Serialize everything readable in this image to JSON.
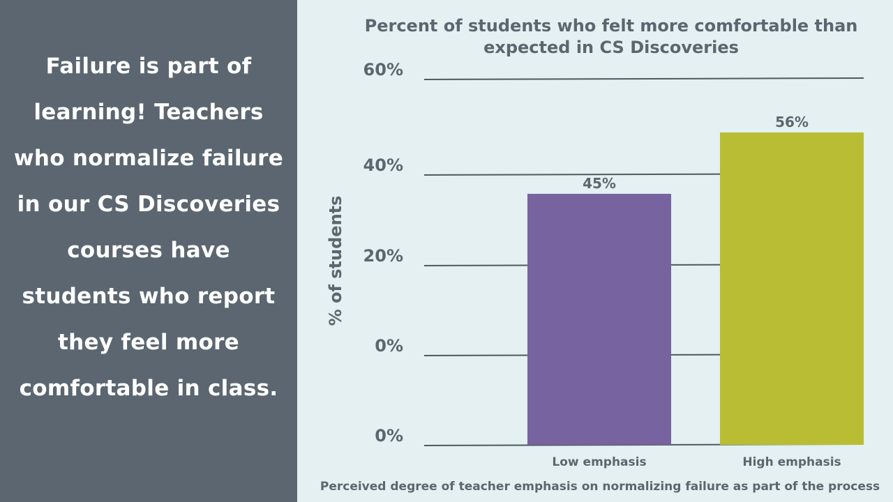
{
  "left_panel": {
    "text": "Failure is part of learning! Teachers who normalize failure in our CS Discoveries courses have students who report they feel more comfortable in class."
  },
  "colors": {
    "left_panel_bg": "#5b6670",
    "chart_bg": "#e4f0f1",
    "text": "#5b6670",
    "gridline": "#4e5962",
    "low_emphasis_bar": "#7763a0",
    "high_emphasis_bar": "#b8bd34"
  },
  "chart_data": {
    "type": "bar",
    "title": "Percent of students who felt more comfortable than expected in CS Discoveries",
    "xlabel": "Perceived degree of teacher emphasis on normalizing failure as part of the process",
    "ylabel": "% of students",
    "categories": [
      "Low emphasis",
      "High emphasis"
    ],
    "values": [
      45,
      56
    ],
    "value_labels": [
      "45%",
      "56%"
    ],
    "y_tick_labels": [
      "0%",
      "0%",
      "20%",
      "40%",
      "60%"
    ],
    "legend": "none",
    "grid": true
  }
}
